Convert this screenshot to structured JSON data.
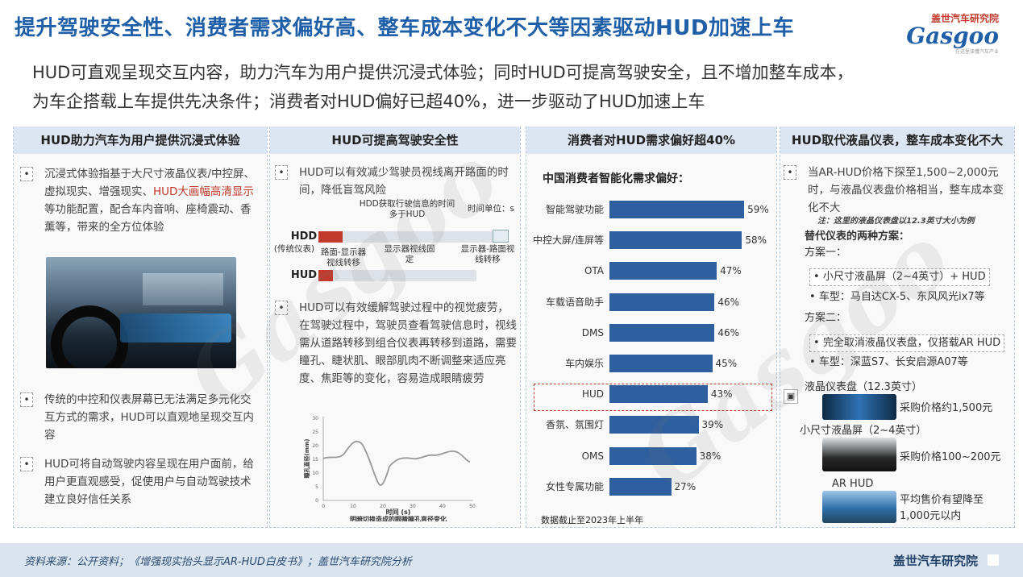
{
  "header": {
    "title": "提升驾驶安全性、消费者需求偏好高、整车成本变化不大等因素驱动HUD加速上车",
    "logo_top": "盖世汽车研究院",
    "logo_word": "Gasgoo",
    "logo_sub": "在这里读懂汽车产业"
  },
  "subtitle": {
    "line1": "HUD可直观呈现交互内容，助力汽车为用户提供沉浸式体验；同时HUD可提高驾驶安全，且不增加整车成本，",
    "line2": "为车企搭载上车提供先决条件；消费者对HUD偏好已超40%，进一步驱动了HUD加速上车"
  },
  "panel1": {
    "heading": "HUD助力汽车为用户提供沉浸式体验",
    "b1_pre": "沉浸式体验指基于大尺寸液晶仪表/中控屏、虚拟现实、增强现实、",
    "b1_red": "HUD大画幅高清显示",
    "b1_post": "等功能配置，配合车内音响、座椅震动、香薰等，带来的全方位体验",
    "b2": "传统的中控和仪表屏幕已无法满足多元化交互方式的需求，HUD可以直观地呈现交互内容",
    "b3": "HUD可将自动驾驶内容呈现在用户面前，给用户更直观感受，促使用户与自动驾驶技术建立良好信任关系"
  },
  "panel2": {
    "heading": "HUD可提高驾驶安全性",
    "b1": "HUD可以有效减少驾驶员视线离开路面的时间，降低盲驾风险",
    "fig_callout": "HDD获取行驶信息的时间多于HUD",
    "fig_unit": "时间单位：s",
    "fig_hdd": "HDD",
    "fig_hdd_sub": "(传统仪表)",
    "fig_hud": "HUD",
    "fig_l1": "路面-显示器视线转移",
    "fig_l2": "显示器视线固定",
    "fig_l3": "显示器-路面视线转移",
    "b2": "HUD可以有效缓解驾驶过程中的视觉疲劳，在驾驶过程中，驾驶员查看驾驶信息时，视线需从道路转移到组合仪表再转移到道路，需要瞳孔、睫状肌、眼部肌肉不断调整来适应亮度、焦距等的变化，容易造成眼睛疲劳",
    "curve": {
      "ylabel": "瞳孔直径(mm)",
      "xlabel": "时间 (s)",
      "caption": "明暗切换造成的眼睛瞳孔直径变化",
      "yticks": [
        "0",
        "5",
        "10",
        "15",
        "20",
        "25",
        "30"
      ],
      "xticks": [
        "0",
        "10",
        "20",
        "30",
        "40",
        "50"
      ]
    }
  },
  "panel3": {
    "heading": "消费者对HUD需求偏好超40%",
    "chart_title": "中国消费者智能化需求偏好：",
    "note": "数据截止至2023年上半年"
  },
  "chart_data": {
    "type": "bar",
    "title": "中国消费者智能化需求偏好：",
    "categories": [
      "智能驾驶功能",
      "中控大屏/连屏等",
      "OTA",
      "车载语音助手",
      "DMS",
      "车内娱乐",
      "HUD",
      "香氛、氛围灯",
      "OMS",
      "女性专属功能"
    ],
    "values": [
      59,
      58,
      47,
      46,
      46,
      45,
      43,
      39,
      38,
      27
    ],
    "labels": [
      "59%",
      "58%",
      "47%",
      "46%",
      "46%",
      "45%",
      "43%",
      "39%",
      "38%",
      "27%"
    ],
    "unit": "%",
    "highlight": "HUD",
    "bar_color": "#2e5f9e",
    "xlim": [
      0,
      60
    ]
  },
  "panel4": {
    "heading": "HUD取代液晶仪表，整车成本变化不大",
    "b1": "当AR-HUD价格下探至1,500~2,000元时，与液晶仪表盘价格相当，整车成本变化不大",
    "note": "注：这里的液晶仪表盘以12.3英寸大小为例",
    "sub": "替代仪表的两种方案：",
    "plan1": "方案一：",
    "plan1_a": "小尺寸液晶屏（2~4英寸）+ HUD",
    "plan1_b": "车型：马自达CX-5、东风风光ix7等",
    "plan2": "方案二：",
    "plan2_a": "完全取消液晶仪表盘，仅搭载AR HUD",
    "plan2_b": "车型：深蓝S7、长安启源A07等",
    "i1_title": "液晶仪表盘（12.3英寸）",
    "i1_price": "采购价格约1,500元",
    "i2_title": "小尺寸液晶屏（2~4英寸）",
    "i2_price": "采购价格100~200元",
    "i3_title": "AR HUD",
    "i3_price": "平均售价有望降至1,000元以内"
  },
  "footer": {
    "source": "资料来源：公开资料；《增强现实抬头显示AR-HUD白皮书》；盖世汽车研究院分析",
    "brand": "盖世汽车研究院"
  }
}
